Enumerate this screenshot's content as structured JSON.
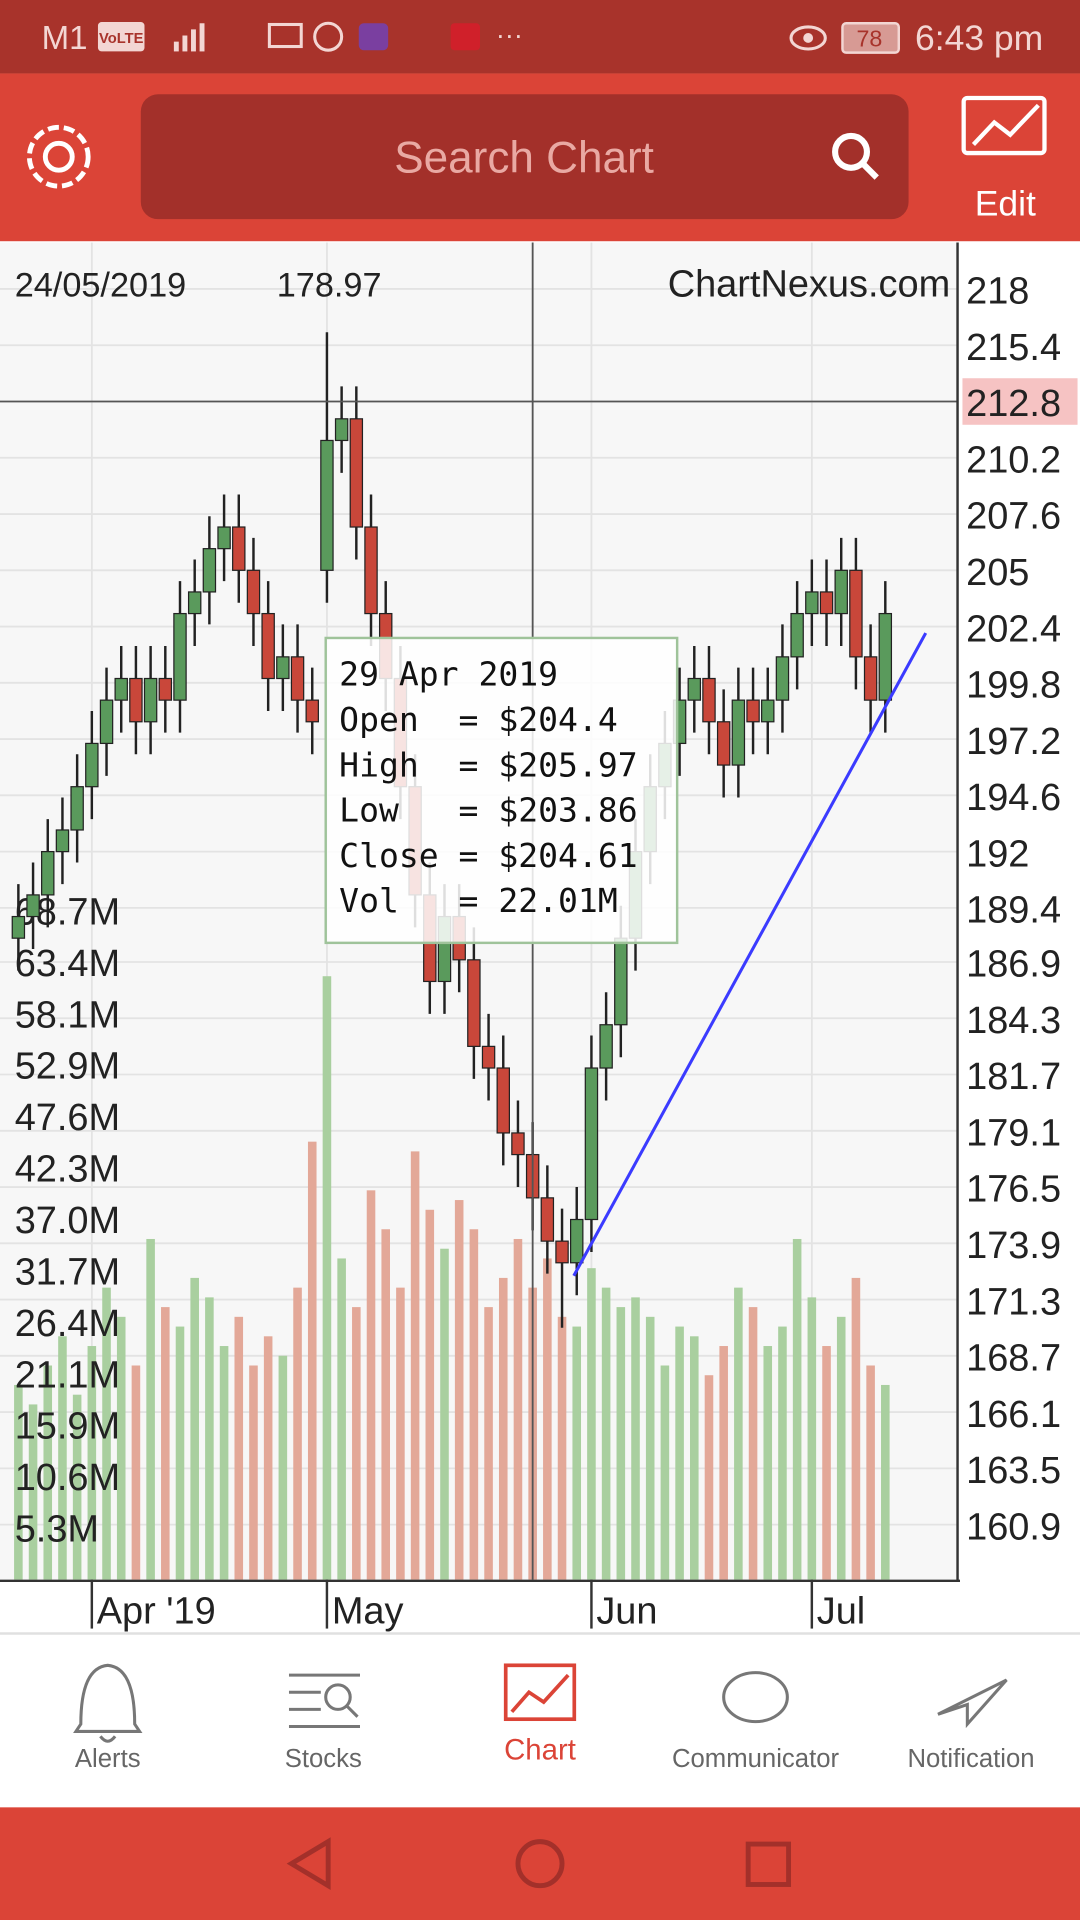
{
  "status_bar": {
    "carrier": "M1",
    "volte": "VoLTE",
    "battery": "78",
    "time": "6:43 pm"
  },
  "app_bar": {
    "search_placeholder": "Search Chart",
    "edit": "Edit"
  },
  "chart_data": {
    "type": "candlestick",
    "watermark": "ChartNexus.com",
    "grid": true,
    "crosshair": {
      "date": "24/05/2019",
      "value": 178.97,
      "price": 212.8,
      "index": 35
    },
    "tooltip": {
      "date": "29 Apr 2019",
      "lines": [
        "Open  = $204.4",
        "High  = $205.97",
        "Low   = $203.86",
        "Close = $204.61",
        "Vol   = 22.01M"
      ]
    },
    "open": [
      188,
      189,
      190,
      192,
      193,
      195,
      197,
      199,
      200,
      198,
      200,
      199,
      203,
      204,
      206,
      207,
      205,
      203,
      200,
      201,
      199,
      205,
      211,
      212,
      207,
      203,
      200,
      195,
      190,
      186,
      189,
      187,
      183,
      182,
      179,
      178,
      176,
      174,
      173,
      175,
      182,
      184,
      188,
      192,
      195,
      197,
      199,
      200,
      198,
      196,
      199,
      198,
      199,
      201,
      203,
      204,
      203,
      205,
      201,
      199
    ],
    "high": [
      190.5,
      191.5,
      193.5,
      194.5,
      196.5,
      198.5,
      200.5,
      201.5,
      201.5,
      201.5,
      201.5,
      204.5,
      205.5,
      207.5,
      208.5,
      208.5,
      206.5,
      204.5,
      202.5,
      202.5,
      200.5,
      216,
      213.5,
      213.5,
      208.5,
      204.5,
      201.5,
      196.5,
      191.5,
      190.5,
      190.5,
      188.5,
      184.5,
      183.5,
      180.5,
      179.5,
      177.5,
      175.5,
      176.5,
      183.5,
      185.5,
      189.5,
      193.5,
      196.5,
      198.5,
      200.5,
      201.5,
      201.5,
      199.5,
      200.5,
      200.5,
      200.5,
      202.5,
      204.5,
      205.5,
      205.5,
      206.5,
      206.5,
      202.5,
      204.5
    ],
    "low": [
      186.5,
      187.5,
      188.5,
      190.5,
      191.5,
      193.5,
      195.5,
      197.5,
      196.5,
      196.5,
      197.5,
      197.5,
      201.5,
      202.5,
      204.5,
      203.5,
      201.5,
      198.5,
      198.5,
      197.5,
      196.5,
      203.5,
      209.5,
      205.5,
      201.5,
      198.5,
      193.5,
      188.5,
      184.5,
      184.5,
      185.5,
      181.5,
      180.5,
      177.5,
      176.5,
      174.5,
      172.5,
      170,
      171.5,
      173.5,
      180.5,
      182.5,
      186.5,
      190.5,
      193.5,
      195.5,
      197.5,
      196.5,
      194.5,
      194.5,
      196.5,
      196.5,
      197.5,
      199.5,
      201.5,
      201.5,
      201.5,
      199.5,
      197.5,
      197.5
    ],
    "close": [
      189,
      190,
      192,
      193,
      195,
      197,
      199,
      200,
      198,
      200,
      199,
      203,
      204,
      206,
      207,
      205,
      203,
      200,
      201,
      199,
      198,
      211,
      212,
      207,
      203,
      200,
      195,
      190,
      186,
      189,
      187,
      183,
      182,
      179,
      178,
      176,
      174,
      173,
      175,
      182,
      184,
      188,
      192,
      195,
      197,
      199,
      200,
      198,
      196,
      199,
      198,
      199,
      201,
      203,
      204,
      203,
      205,
      201,
      199,
      203
    ],
    "volume": [
      20,
      18,
      22,
      25,
      19,
      24,
      30,
      27,
      22,
      35,
      28,
      26,
      31,
      29,
      24,
      27,
      22,
      25,
      23,
      30,
      45,
      62,
      33,
      28,
      40,
      36,
      30,
      44,
      38,
      34,
      39,
      36,
      28,
      31,
      35,
      30,
      33,
      27,
      26,
      32,
      30,
      28,
      29,
      27,
      22,
      26,
      25,
      21,
      24,
      30,
      28,
      24,
      26,
      35,
      29,
      24,
      27,
      31,
      22,
      20
    ],
    "colors": {
      "up": "#5a9a5c",
      "down": "#c9473a",
      "volume_up": "#a9cf9f",
      "volume_down": "#e3a898",
      "trendline": "#3b3bff",
      "highlight": "#f6c3c3"
    },
    "x_labels": [
      {
        "index": 5,
        "label": "Apr '19"
      },
      {
        "index": 21,
        "label": "May"
      },
      {
        "index": 39,
        "label": "Jun"
      },
      {
        "index": 54,
        "label": "Jul"
      }
    ],
    "ylim": [
      158.36,
      220.15
    ],
    "yticks": [
      218,
      215.4,
      212.8,
      210.2,
      207.6,
      205,
      202.4,
      199.8,
      197.2,
      194.6,
      192,
      189.4,
      186.9,
      184.3,
      181.7,
      179.1,
      176.5,
      173.9,
      171.3,
      168.7,
      166.1,
      163.5,
      160.9
    ],
    "volume_lim": [
      0,
      137.4
    ],
    "volume_ticks": [
      {
        "value": 68.7,
        "label": "68.7M"
      },
      {
        "value": 63.4,
        "label": "63.4M"
      },
      {
        "value": 58.1,
        "label": "58.1M"
      },
      {
        "value": 52.9,
        "label": "52.9M"
      },
      {
        "value": 47.6,
        "label": "47.6M"
      },
      {
        "value": 42.3,
        "label": "42.3M"
      },
      {
        "value": 37,
        "label": "37.0M"
      },
      {
        "value": 31.7,
        "label": "31.7M"
      },
      {
        "value": 26.4,
        "label": "26.4M"
      },
      {
        "value": 21.1,
        "label": "21.1M"
      },
      {
        "value": 15.9,
        "label": "15.9M"
      },
      {
        "value": 10.6,
        "label": "10.6M"
      },
      {
        "value": 5.3,
        "label": "5.3M"
      }
    ],
    "trendline": {
      "x": [
        37.8,
        61.75
      ],
      "y": [
        172.4,
        202.1
      ]
    }
  },
  "bottom_nav": {
    "items": [
      "Alerts",
      "Stocks",
      "Chart",
      "Communicator",
      "Notification"
    ],
    "active": 2
  }
}
